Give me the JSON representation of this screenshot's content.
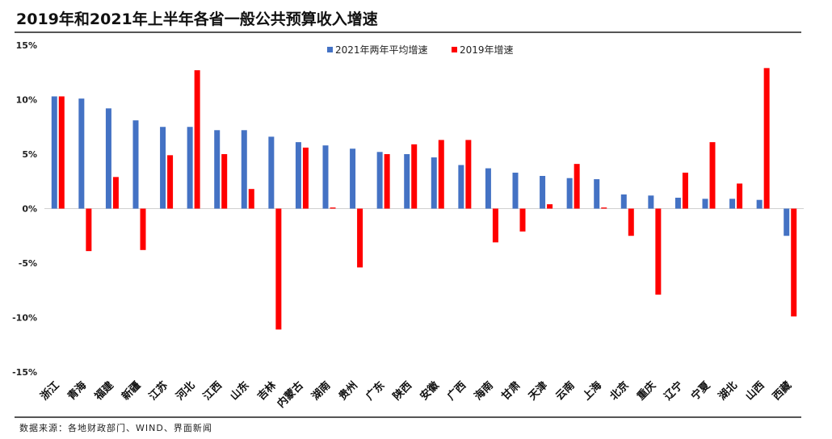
{
  "title": "2019年和2021年上半年各省一般公共预算收入增速",
  "source": "数据来源：各地财政部门、WIND、界面新闻",
  "colors": {
    "series_2021": "#4472C4",
    "series_2019": "#FF0000",
    "axis": "#d0d0d0",
    "rule": "#555555"
  },
  "chart_data": {
    "type": "bar",
    "title": "2019年和2021年上半年各省一般公共预算收入增速",
    "xlabel": "",
    "ylabel": "",
    "ylim": [
      -15,
      15
    ],
    "yticks": [
      15,
      10,
      5,
      0,
      -5,
      -10,
      -15
    ],
    "ytick_labels": [
      "15%",
      "10%",
      "5%",
      "0%",
      "-5%",
      "-10%",
      "-15%"
    ],
    "legend_position": "top-center",
    "grid": false,
    "categories": [
      "浙江",
      "青海",
      "福建",
      "新疆",
      "江苏",
      "河北",
      "江西",
      "山东",
      "吉林",
      "内蒙古",
      "湖南",
      "贵州",
      "广东",
      "陕西",
      "安徽",
      "广西",
      "海南",
      "甘肃",
      "天津",
      "云南",
      "上海",
      "北京",
      "重庆",
      "辽宁",
      "宁夏",
      "湖北",
      "山西",
      "西藏"
    ],
    "series": [
      {
        "name": "2021年两年平均增速",
        "values": [
          10.3,
          10.1,
          9.2,
          8.1,
          7.5,
          7.5,
          7.2,
          7.2,
          6.6,
          6.1,
          5.8,
          5.5,
          5.2,
          5.0,
          4.7,
          4.0,
          3.7,
          3.3,
          3.0,
          2.8,
          2.7,
          1.3,
          1.2,
          1.0,
          0.9,
          0.9,
          0.8,
          -2.5
        ]
      },
      {
        "name": "2019年增速",
        "values": [
          10.3,
          -3.9,
          2.9,
          -3.8,
          4.9,
          12.7,
          5.0,
          1.8,
          -11.1,
          5.6,
          0.1,
          -5.4,
          5.0,
          5.9,
          6.3,
          6.3,
          -3.1,
          -2.1,
          0.4,
          4.1,
          0.1,
          -2.5,
          -7.9,
          3.3,
          6.1,
          2.3,
          12.9,
          -9.9
        ]
      }
    ]
  }
}
